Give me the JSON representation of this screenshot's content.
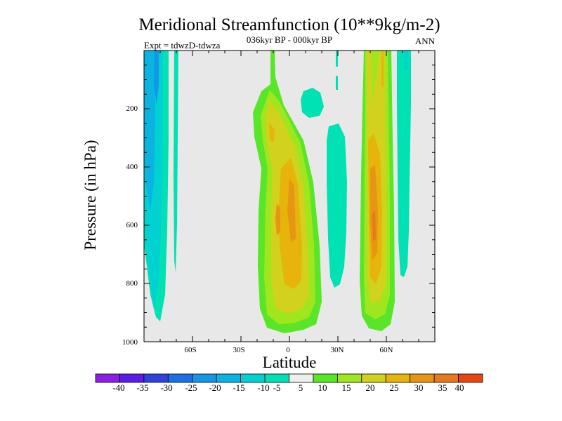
{
  "chart_data": {
    "type": "contour",
    "title": "Meridional Streamfunction (10**9kg/m-2)",
    "subtitle": "036kyr BP - 000kyr BP",
    "left_label": "Expt = tdwzD-tdwza",
    "right_label": "ANN",
    "xlabel": "Latitude",
    "ylabel": "Pressure (in hPa)",
    "xlim": [
      -90,
      90
    ],
    "ylim": [
      1000,
      0
    ],
    "x_ticks": [
      -60,
      -30,
      0,
      30,
      60
    ],
    "x_tick_labels": [
      "60S",
      "30S",
      "0",
      "30N",
      "60N"
    ],
    "y_ticks": [
      200,
      400,
      600,
      800,
      1000
    ],
    "y_tick_labels": [
      "200",
      "400",
      "600",
      "800",
      "1000"
    ],
    "colorbar": {
      "labels": [
        "-40",
        "-35",
        "-30",
        "-25",
        "-20",
        "-15",
        "-10",
        "-5",
        "5",
        "10",
        "15",
        "20",
        "25",
        "30",
        "35",
        "40"
      ],
      "colors": [
        "#8c1ee6",
        "#5a1ee6",
        "#3241dc",
        "#1e6ee6",
        "#1496e6",
        "#0ab4e1",
        "#00d2d2",
        "#00e1b4",
        "#eeeeee",
        "#5ae628",
        "#a0e61e",
        "#d2d21e",
        "#e6b40a",
        "#e69614",
        "#e6781e",
        "#e64614"
      ]
    },
    "background_color": "#e8e8e8",
    "regions": [
      {
        "name": "SH high-lat negative cell",
        "lat_range": [
          -90,
          -78
        ],
        "p_range": [
          0,
          930
        ],
        "value_min": -20,
        "value_max": -5
      },
      {
        "name": "SH narrow negative band",
        "lat_range": [
          -72,
          -70
        ],
        "p_range": [
          0,
          770
        ],
        "value_min": -10,
        "value_max": -5
      },
      {
        "name": "Tropical positive cell",
        "lat_range": [
          -22,
          20
        ],
        "p_range": [
          90,
          975
        ],
        "value_min": 5,
        "value_max": 30
      },
      {
        "name": "Tropical negative blob",
        "lat_range": [
          8,
          22
        ],
        "p_range": [
          110,
          180
        ],
        "value_min": -10,
        "value_max": -5
      },
      {
        "name": "NH subtropical negative band",
        "lat_range": [
          24,
          36
        ],
        "p_range": [
          170,
          815
        ],
        "value_min": -10,
        "value_max": -5
      },
      {
        "name": "NH mid-lat positive cell",
        "lat_range": [
          45,
          60
        ],
        "p_range": [
          0,
          975
        ],
        "value_min": 5,
        "value_max": 35
      },
      {
        "name": "NH high-lat negative band",
        "lat_range": [
          67,
          76
        ],
        "p_range": [
          0,
          790
        ],
        "value_min": -10,
        "value_max": -5
      }
    ]
  }
}
